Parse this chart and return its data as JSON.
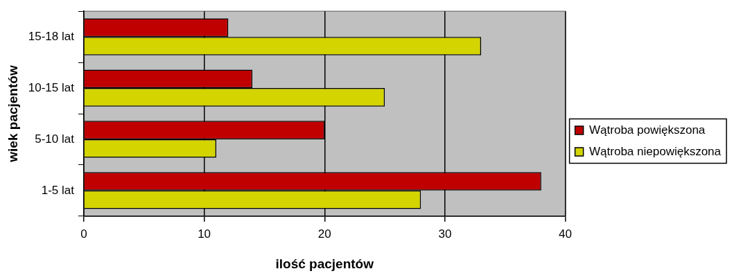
{
  "chart_data": {
    "type": "bar",
    "orientation": "horizontal",
    "xlabel": "ilość pacjentów",
    "ylabel": "wiek pacjentów",
    "categories": [
      "15-18 lat",
      "10-15 lat",
      "5-10 lat",
      "1-5 lat"
    ],
    "series": [
      {
        "name": "Wątroba powiększona",
        "color": "#c00000",
        "values": [
          12,
          14,
          20,
          38
        ]
      },
      {
        "name": "Wątroba niepowiększona",
        "color": "#d4d400",
        "values": [
          33,
          25,
          11,
          28
        ]
      }
    ],
    "xlim": [
      0,
      40
    ],
    "xticks": [
      0,
      10,
      20,
      30,
      40
    ],
    "grid": "x",
    "legend": "right"
  }
}
